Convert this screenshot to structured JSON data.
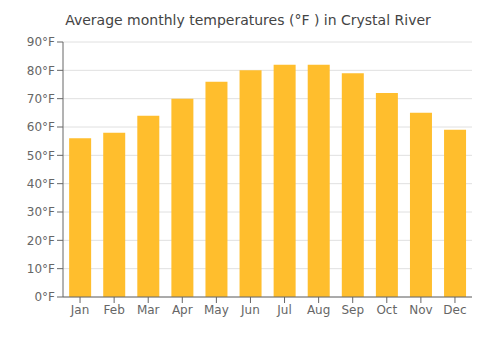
{
  "chart_data": {
    "type": "bar",
    "title": "Average monthly temperatures (°F ) in Crystal River",
    "categories": [
      "Jan",
      "Feb",
      "Mar",
      "Apr",
      "May",
      "Jun",
      "Jul",
      "Aug",
      "Sep",
      "Oct",
      "Nov",
      "Dec"
    ],
    "values": [
      56,
      58,
      64,
      70,
      76,
      80,
      82,
      82,
      79,
      72,
      65,
      59
    ],
    "color": "#FFBE2D",
    "ylim": [
      0,
      90
    ],
    "yticks": [
      {
        "value": 0,
        "label": "0°F"
      },
      {
        "value": 10,
        "label": "10°F"
      },
      {
        "value": 20,
        "label": "20°F"
      },
      {
        "value": 30,
        "label": "30°F"
      },
      {
        "value": 40,
        "label": "40°F"
      },
      {
        "value": 50,
        "label": "50°F"
      },
      {
        "value": 60,
        "label": "60°F"
      },
      {
        "value": 70,
        "label": "70°F"
      },
      {
        "value": 80,
        "label": "80°F"
      },
      {
        "value": 90,
        "label": "90°F"
      }
    ],
    "grid": true
  }
}
